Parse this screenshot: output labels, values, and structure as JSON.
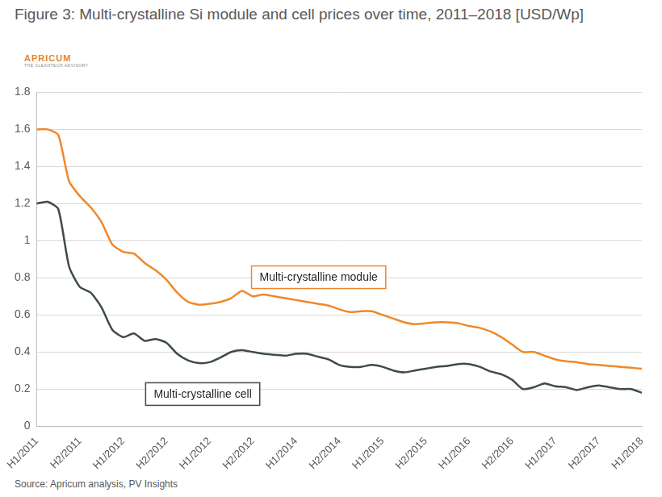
{
  "chart_data": {
    "type": "line",
    "title": "Figure 3: Multi-crystalline Si module and cell prices over time, 2011–2018 [USD/Wp]",
    "brand": "APRICUM",
    "brand_tagline": "THE CLEANTECH ADVISORY",
    "source": "Source: Apricum analysis, PV Insights",
    "categories": [
      "H1/2011",
      null,
      null,
      null,
      "H2/2011",
      null,
      null,
      null,
      "H1/2012",
      null,
      null,
      null,
      "H2/2012",
      null,
      null,
      null,
      "H1/2012",
      null,
      null,
      null,
      "H2/2012",
      null,
      null,
      null,
      "H1/2014",
      null,
      null,
      null,
      "H2/2014",
      null,
      null,
      null,
      "H1/2015",
      null,
      null,
      null,
      "H2/2015",
      null,
      null,
      null,
      "H1/2016",
      null,
      null,
      null,
      "H2/2016",
      null,
      null,
      null,
      "H1/2017",
      null,
      null,
      null,
      "H2/2017",
      null,
      null,
      null,
      "H1/2018"
    ],
    "series": [
      {
        "name": "Multi-crystalline module",
        "color": "#f0882a",
        "values": [
          1.6,
          1.6,
          1.57,
          1.32,
          1.24,
          1.18,
          1.1,
          0.98,
          0.94,
          0.93,
          0.88,
          0.84,
          0.79,
          0.72,
          0.67,
          0.655,
          0.66,
          0.67,
          0.69,
          0.73,
          0.7,
          0.71,
          0.7,
          0.69,
          0.68,
          0.67,
          0.66,
          0.65,
          0.63,
          0.615,
          0.62,
          0.62,
          0.6,
          0.58,
          0.56,
          0.55,
          0.555,
          0.56,
          0.56,
          0.555,
          0.54,
          0.53,
          0.51,
          0.48,
          0.44,
          0.4,
          0.4,
          0.38,
          0.36,
          0.35,
          0.345,
          0.335,
          0.33,
          0.325,
          0.32,
          0.315,
          0.31
        ]
      },
      {
        "name": "Multi-crystalline cell",
        "color": "#3f4b4b",
        "values": [
          1.2,
          1.21,
          1.17,
          0.86,
          0.75,
          0.72,
          0.64,
          0.52,
          0.48,
          0.5,
          0.46,
          0.47,
          0.45,
          0.39,
          0.355,
          0.34,
          0.345,
          0.37,
          0.4,
          0.41,
          0.4,
          0.39,
          0.385,
          0.38,
          0.39,
          0.39,
          0.375,
          0.36,
          0.33,
          0.32,
          0.32,
          0.33,
          0.32,
          0.3,
          0.29,
          0.3,
          0.31,
          0.32,
          0.325,
          0.335,
          0.335,
          0.32,
          0.295,
          0.28,
          0.25,
          0.2,
          0.21,
          0.23,
          0.215,
          0.21,
          0.195,
          0.21,
          0.22,
          0.21,
          0.2,
          0.2,
          0.18
        ]
      }
    ],
    "ylim": [
      0,
      1.8
    ],
    "yticks": [
      0,
      0.2,
      0.4,
      0.6,
      0.8,
      1,
      1.2,
      1.4,
      1.6,
      1.8
    ],
    "grid": true
  }
}
